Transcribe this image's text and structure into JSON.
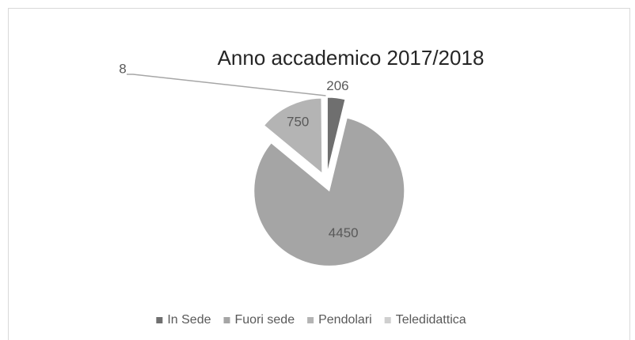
{
  "chart_data": {
    "type": "pie",
    "title": "Anno accademico 2017/2018",
    "categories": [
      "In Sede",
      "Fuori sede",
      "Pendolari",
      "Teledidattica"
    ],
    "values": [
      206,
      4450,
      750,
      8
    ],
    "colors": [
      "#6f6f6f",
      "#a5a5a5",
      "#b4b4b4",
      "#cfcfcf"
    ],
    "legend": "bottom"
  }
}
